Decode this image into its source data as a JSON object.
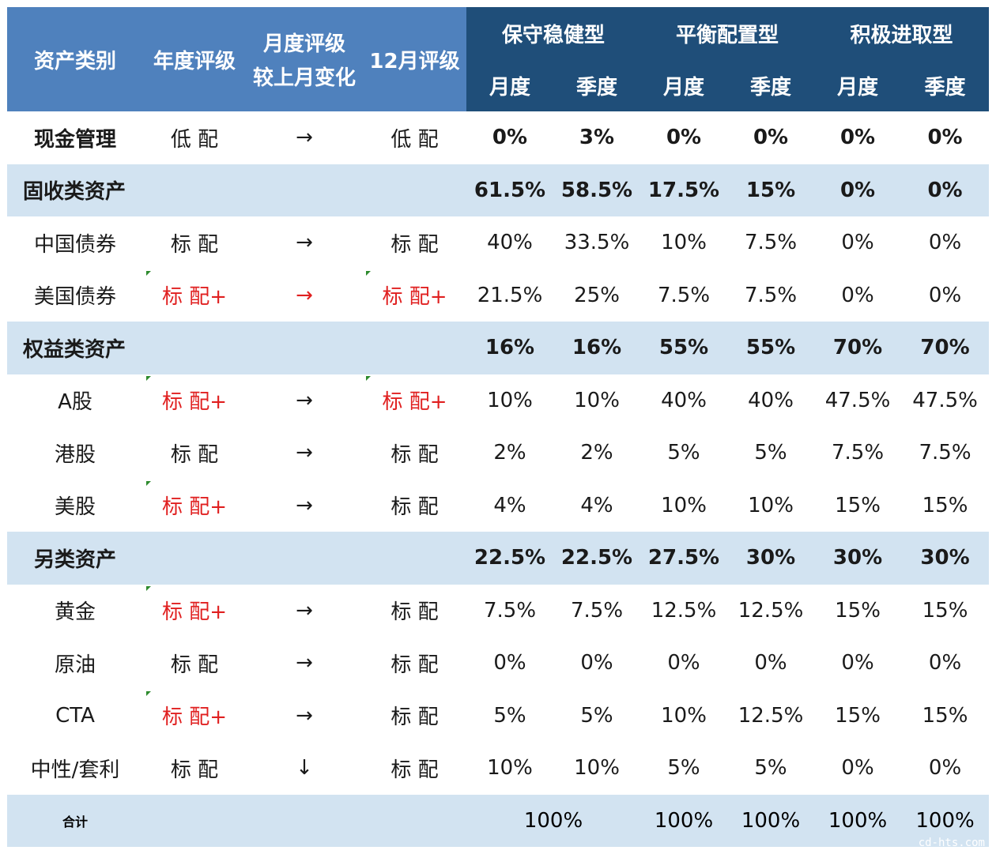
{
  "header": {
    "asset_class": "资产类别",
    "annual_rating": "年度评级",
    "monthly_change_line1": "月度评级",
    "monthly_change_line2": "较上月变化",
    "dec_rating": "12月评级",
    "profiles": [
      "保守稳健型",
      "平衡配置型",
      "积极进取型"
    ],
    "periods": [
      "月度",
      "季度",
      "月度",
      "季度",
      "月度",
      "季度"
    ]
  },
  "rows": [
    {
      "name": "现金管理",
      "type": "bold",
      "annual": "低 配",
      "annual_red": false,
      "annual_mark": false,
      "change": "→",
      "change_red": false,
      "dec": "低 配",
      "dec_red": false,
      "dec_mark": false,
      "values": [
        "0%",
        "3%",
        "0%",
        "0%",
        "0%",
        "0%"
      ]
    },
    {
      "name": "固收类资产",
      "type": "cat",
      "annual": "",
      "change": "",
      "dec": "",
      "values": [
        "61.5%",
        "58.5%",
        "17.5%",
        "15%",
        "0%",
        "0%"
      ]
    },
    {
      "name": "中国债券",
      "type": "normal",
      "annual": "标 配",
      "annual_red": false,
      "annual_mark": false,
      "change": "→",
      "change_red": false,
      "dec": "标 配",
      "dec_red": false,
      "dec_mark": false,
      "values": [
        "40%",
        "33.5%",
        "10%",
        "7.5%",
        "0%",
        "0%"
      ]
    },
    {
      "name": "美国债券",
      "type": "normal",
      "annual": "标 配+",
      "annual_red": true,
      "annual_mark": true,
      "change": "→",
      "change_red": true,
      "dec": "标 配+",
      "dec_red": true,
      "dec_mark": true,
      "values": [
        "21.5%",
        "25%",
        "7.5%",
        "7.5%",
        "0%",
        "0%"
      ]
    },
    {
      "name": "权益类资产",
      "type": "cat",
      "annual": "",
      "change": "",
      "dec": "",
      "values": [
        "16%",
        "16%",
        "55%",
        "55%",
        "70%",
        "70%"
      ]
    },
    {
      "name": "A股",
      "type": "normal",
      "annual": "标 配+",
      "annual_red": true,
      "annual_mark": true,
      "change": "→",
      "change_red": false,
      "dec": "标 配+",
      "dec_red": true,
      "dec_mark": true,
      "values": [
        "10%",
        "10%",
        "40%",
        "40%",
        "47.5%",
        "47.5%"
      ]
    },
    {
      "name": "港股",
      "type": "normal",
      "annual": "标 配",
      "annual_red": false,
      "annual_mark": false,
      "change": "→",
      "change_red": false,
      "dec": "标 配",
      "dec_red": false,
      "dec_mark": false,
      "values": [
        "2%",
        "2%",
        "5%",
        "5%",
        "7.5%",
        "7.5%"
      ]
    },
    {
      "name": "美股",
      "type": "normal",
      "annual": "标 配+",
      "annual_red": true,
      "annual_mark": true,
      "change": "→",
      "change_red": false,
      "dec": "标 配",
      "dec_red": false,
      "dec_mark": false,
      "values": [
        "4%",
        "4%",
        "10%",
        "10%",
        "15%",
        "15%"
      ]
    },
    {
      "name": "另类资产",
      "type": "cat-center",
      "annual": "",
      "change": "",
      "dec": "",
      "values": [
        "22.5%",
        "22.5%",
        "27.5%",
        "30%",
        "30%",
        "30%"
      ]
    },
    {
      "name": "黄金",
      "type": "normal",
      "annual": "标 配+",
      "annual_red": true,
      "annual_mark": true,
      "change": "→",
      "change_red": false,
      "dec": "标 配",
      "dec_red": false,
      "dec_mark": false,
      "values": [
        "7.5%",
        "7.5%",
        "12.5%",
        "12.5%",
        "15%",
        "15%"
      ]
    },
    {
      "name": "原油",
      "type": "normal",
      "annual": "标 配",
      "annual_red": false,
      "annual_mark": false,
      "change": "→",
      "change_red": false,
      "dec": "标 配",
      "dec_red": false,
      "dec_mark": false,
      "values": [
        "0%",
        "0%",
        "0%",
        "0%",
        "0%",
        "0%"
      ]
    },
    {
      "name": "CTA",
      "type": "normal",
      "annual": "标 配+",
      "annual_red": true,
      "annual_mark": true,
      "change": "→",
      "change_red": false,
      "dec": "标 配",
      "dec_red": false,
      "dec_mark": false,
      "values": [
        "5%",
        "5%",
        "10%",
        "12.5%",
        "15%",
        "15%"
      ]
    },
    {
      "name": "中性/套利",
      "type": "normal",
      "annual": "标 配",
      "annual_red": false,
      "annual_mark": false,
      "change": "↓",
      "change_red": false,
      "dec": "标 配",
      "dec_red": false,
      "dec_mark": false,
      "values": [
        "10%",
        "10%",
        "5%",
        "5%",
        "0%",
        "0%"
      ]
    }
  ],
  "total": {
    "name": "合计",
    "conservative": "100%",
    "values": [
      "100%",
      "100%",
      "100%",
      "100%"
    ]
  },
  "watermark": "cd-hts.com",
  "colors": {
    "header_left": "#4f81bd",
    "header_right": "#1f4e79",
    "category_band": "#d2e3f1",
    "overweight_red": "#e02020",
    "mark_green": "#2e8b2e"
  }
}
